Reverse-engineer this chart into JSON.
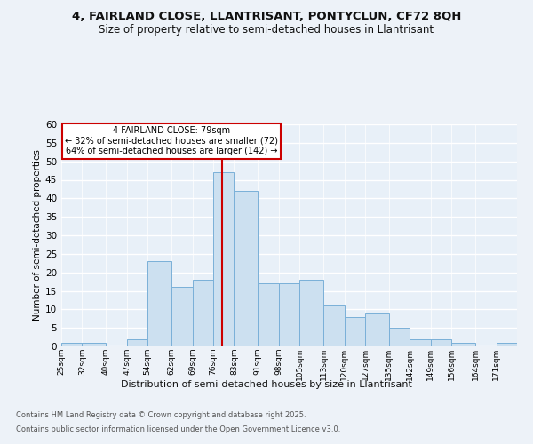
{
  "title_line1": "4, FAIRLAND CLOSE, LLANTRISANT, PONTYCLUN, CF72 8QH",
  "title_line2": "Size of property relative to semi-detached houses in Llantrisant",
  "xlabel": "Distribution of semi-detached houses by size in Llantrisant",
  "ylabel": "Number of semi-detached properties",
  "bar_color": "#cce0f0",
  "bar_edge_color": "#7ab0d8",
  "bg_color": "#e8f0f8",
  "grid_color": "#ffffff",
  "bins": [
    25,
    32,
    40,
    47,
    54,
    62,
    69,
    76,
    83,
    91,
    98,
    105,
    113,
    120,
    127,
    135,
    142,
    149,
    156,
    164,
    171
  ],
  "counts": [
    1,
    1,
    0,
    2,
    23,
    16,
    18,
    47,
    42,
    17,
    17,
    18,
    11,
    8,
    9,
    5,
    2,
    2,
    1,
    0,
    1
  ],
  "property_size": 79,
  "property_label": "4 FAIRLAND CLOSE: 79sqm",
  "smaller_pct": 32,
  "smaller_count": 72,
  "larger_pct": 64,
  "larger_count": 142,
  "annotation_box_color": "#ffffff",
  "annotation_box_edge": "#cc0000",
  "vline_color": "#cc0000",
  "ylim": [
    0,
    60
  ],
  "yticks": [
    0,
    5,
    10,
    15,
    20,
    25,
    30,
    35,
    40,
    45,
    50,
    55,
    60
  ],
  "footer_line1": "Contains HM Land Registry data © Crown copyright and database right 2025.",
  "footer_line2": "Contains public sector information licensed under the Open Government Licence v3.0.",
  "tick_labels": [
    "25sqm",
    "32sqm",
    "40sqm",
    "47sqm",
    "54sqm",
    "62sqm",
    "69sqm",
    "76sqm",
    "83sqm",
    "91sqm",
    "98sqm",
    "105sqm",
    "113sqm",
    "120sqm",
    "127sqm",
    "135sqm",
    "142sqm",
    "149sqm",
    "156sqm",
    "164sqm",
    "171sqm"
  ],
  "fig_bg": "#edf2f8",
  "title_fontsize": 9.5,
  "subtitle_fontsize": 8.5,
  "ylabel_fontsize": 7.5,
  "xlabel_fontsize": 8,
  "tick_fontsize": 6.5,
  "ytick_fontsize": 7.5,
  "footer_fontsize": 6,
  "annot_fontsize": 7
}
